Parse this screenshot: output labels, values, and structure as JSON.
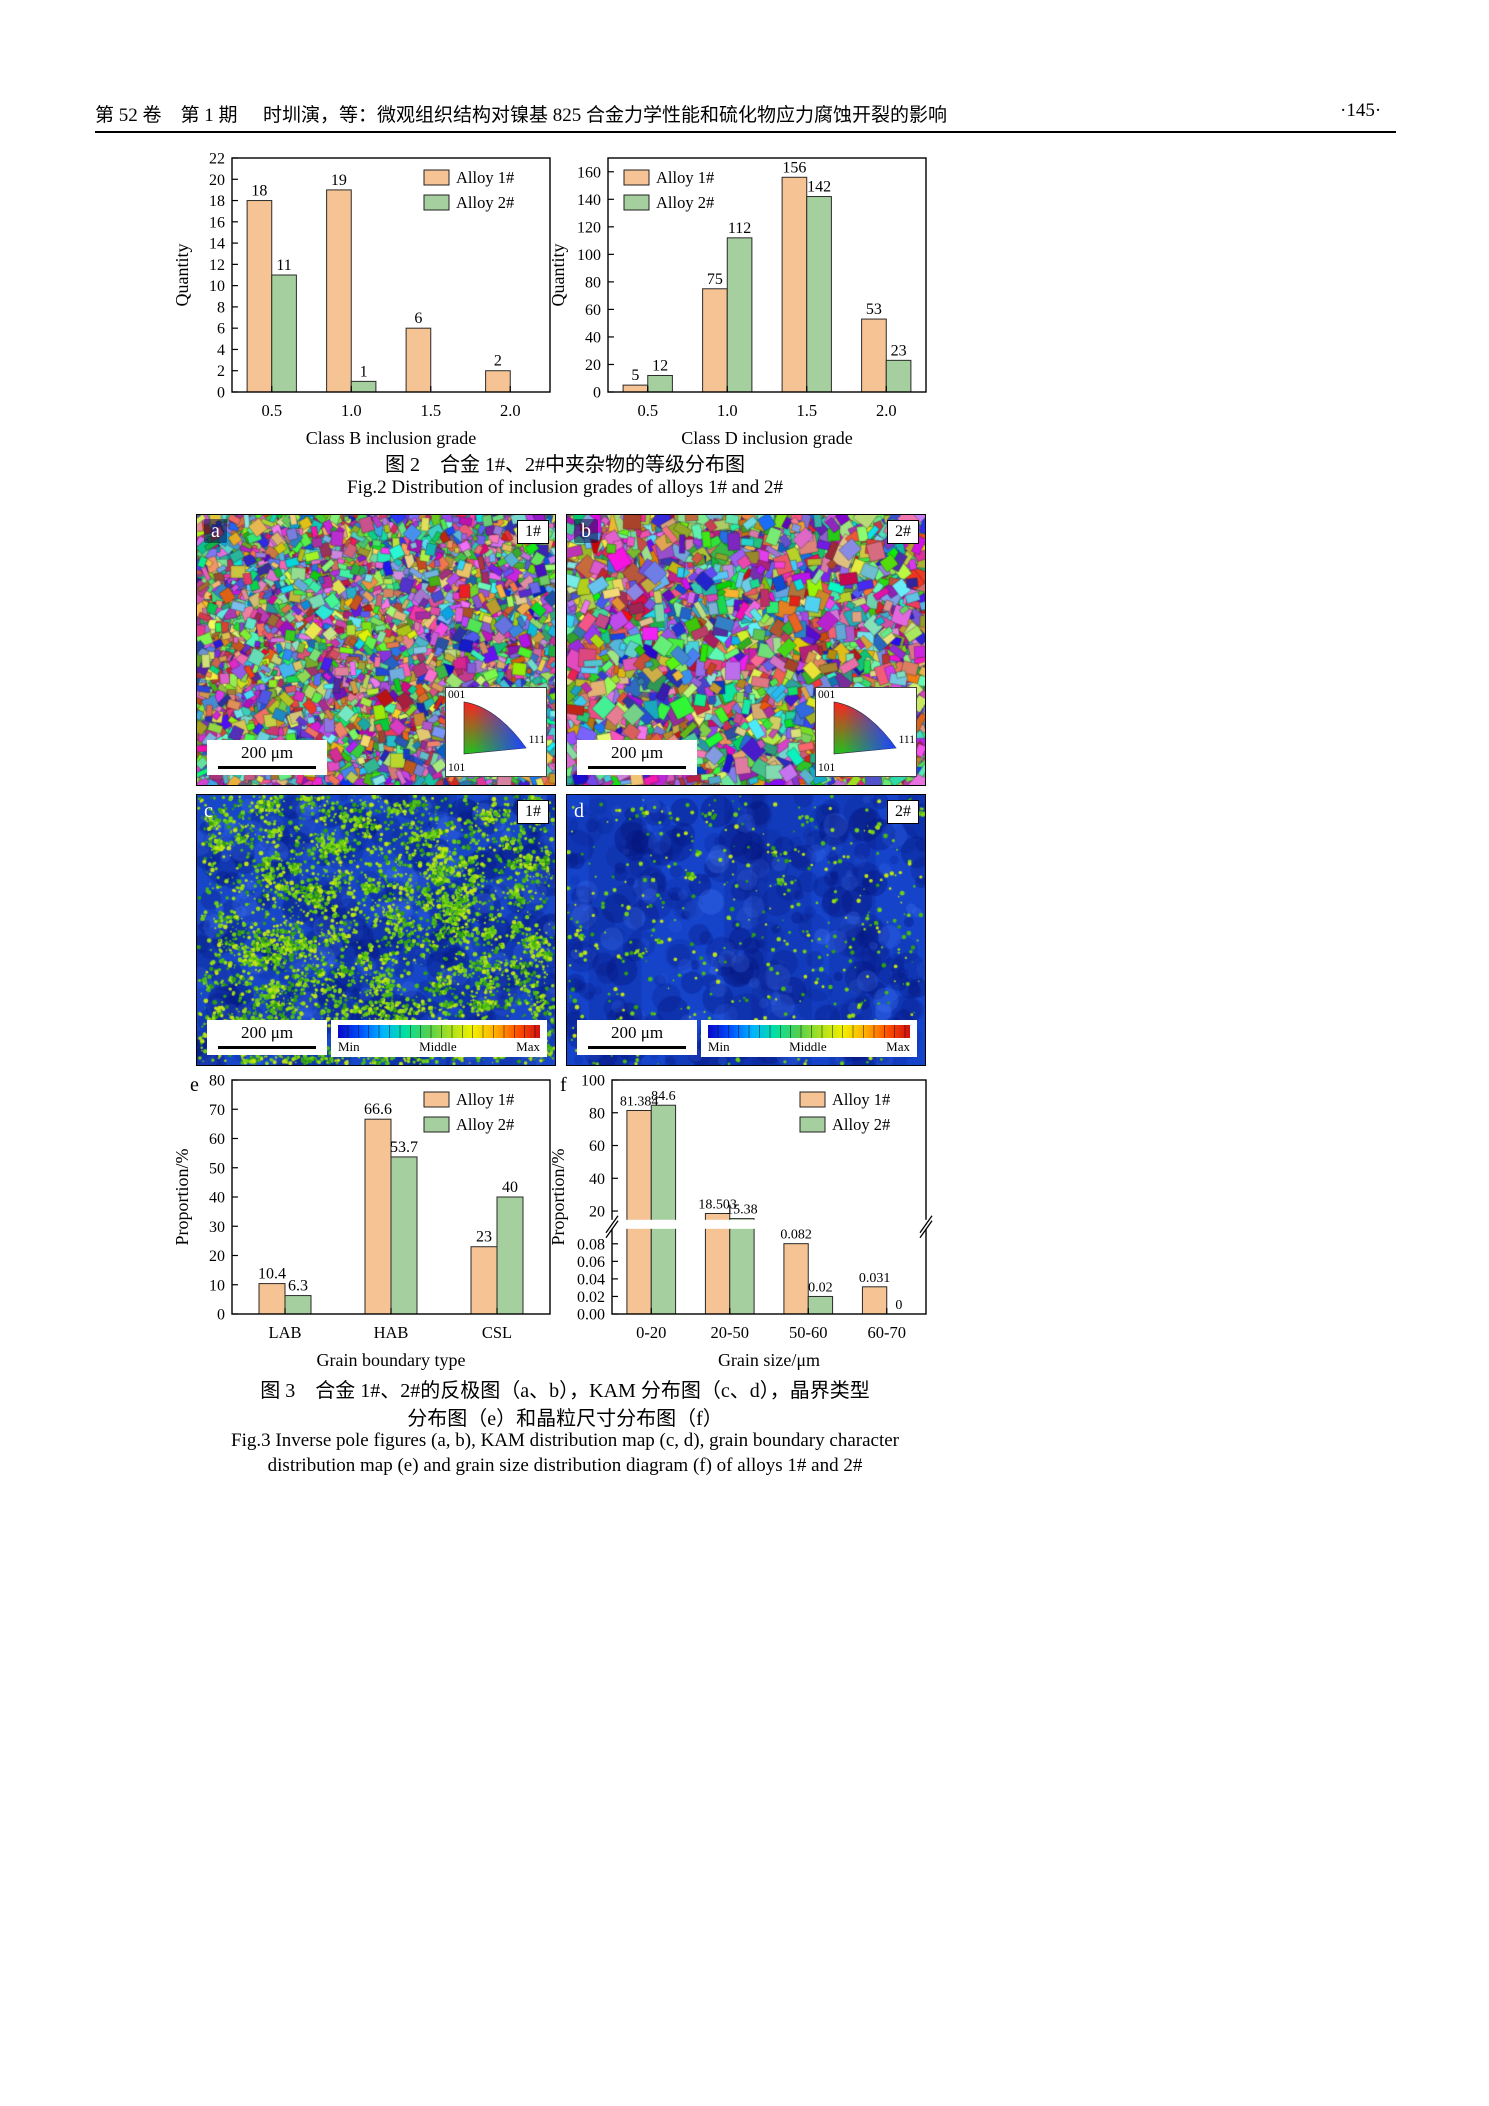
{
  "header": {
    "left": "第 52 卷　第 1 期",
    "center": "时圳演，等：微观组织结构对镍基 825 合金力学性能和硫化物应力腐蚀开裂的影响",
    "right": "·145·"
  },
  "captions": {
    "fig2_zh": "图 2　合金 1#、2#中夹杂物的等级分布图",
    "fig2_en": "Fig.2 Distribution of inclusion grades of alloys 1# and 2#",
    "fig3_zh1": "图 3　合金 1#、2#的反极图（a、b），KAM 分布图（c、d），晶界类型",
    "fig3_zh2": "分布图（e）和晶粒尺寸分布图（f）",
    "fig3_en1": "Fig.3 Inverse pole figures (a, b), KAM distribution map (c, d), grain boundary character",
    "fig3_en2": "distribution map (e) and grain size distribution diagram (f) of alloys 1# and 2#"
  },
  "colors": {
    "alloy1_fill": "#F5C394",
    "alloy2_fill": "#A5CF9F",
    "bar_stroke": "#2a2a2a"
  },
  "panels": {
    "a": {
      "letter": "a",
      "tag": "1#",
      "scale": "200 μm"
    },
    "b": {
      "letter": "b",
      "tag": "2#",
      "scale": "200 μm"
    },
    "c": {
      "letter": "c",
      "tag": "1#",
      "scale": "200 μm"
    },
    "d": {
      "letter": "d",
      "tag": "2#",
      "scale": "200 μm"
    },
    "e": {
      "letter": "e"
    },
    "f": {
      "letter": "f"
    },
    "ipf": {
      "tl": "001",
      "bl": "101",
      "br": "111"
    },
    "colorbar": {
      "min": "Min",
      "mid": "Middle",
      "max": "Max"
    }
  },
  "chart_data": [
    {
      "id": "fig2_classB",
      "type": "bar",
      "categories": [
        "0.5",
        "1.0",
        "1.5",
        "2.0"
      ],
      "series": [
        {
          "name": "Alloy 1#",
          "values": [
            18,
            19,
            6,
            2
          ],
          "labels": [
            "18",
            "19",
            "6",
            "2"
          ]
        },
        {
          "name": "Alloy 2#",
          "values": [
            11,
            1,
            0,
            0
          ],
          "labels": [
            "11",
            "1",
            "",
            ""
          ]
        }
      ],
      "xlabel": "Class B inclusion grade",
      "ylabel": "Quantity",
      "ylim": [
        0,
        22
      ],
      "yticks": [
        0,
        2,
        4,
        6,
        8,
        10,
        12,
        14,
        16,
        18,
        20,
        22
      ],
      "legend_pos": "tr"
    },
    {
      "id": "fig2_classD",
      "type": "bar",
      "categories": [
        "0.5",
        "1.0",
        "1.5",
        "2.0"
      ],
      "series": [
        {
          "name": "Alloy 1#",
          "values": [
            5,
            75,
            156,
            53
          ],
          "labels": [
            "5",
            "75",
            "156",
            "53"
          ]
        },
        {
          "name": "Alloy 2#",
          "values": [
            12,
            112,
            142,
            23
          ],
          "labels": [
            "12",
            "112",
            "142",
            "23"
          ]
        }
      ],
      "xlabel": "Class D inclusion grade",
      "ylabel": "Quantity",
      "ylim": [
        0,
        170
      ],
      "yticks": [
        0,
        20,
        40,
        60,
        80,
        100,
        120,
        140,
        160
      ],
      "legend_pos": "tl"
    },
    {
      "id": "fig3_gbtype",
      "type": "bar",
      "categories": [
        "LAB",
        "HAB",
        "CSL"
      ],
      "series": [
        {
          "name": "Alloy 1#",
          "values": [
            10.4,
            66.6,
            23
          ],
          "labels": [
            "10.4",
            "66.6",
            "23"
          ]
        },
        {
          "name": "Alloy 2#",
          "values": [
            6.3,
            53.7,
            40
          ],
          "labels": [
            "6.3",
            "53.7",
            "40"
          ]
        }
      ],
      "xlabel": "Grain boundary type",
      "ylabel": "Proportion/%",
      "ylim": [
        0,
        80
      ],
      "yticks": [
        0,
        10,
        20,
        30,
        40,
        50,
        60,
        70,
        80
      ],
      "legend_pos": "tr"
    },
    {
      "id": "fig3_grainsize",
      "type": "bar-broken",
      "categories": [
        "0-20",
        "20-50",
        "50-60",
        "60-70"
      ],
      "series": [
        {
          "name": "Alloy 1#",
          "values": [
            81.384,
            18.503,
            0.082,
            0.031
          ],
          "labels": [
            "81.384",
            "18.503",
            "0.082",
            "0.031"
          ]
        },
        {
          "name": "Alloy 2#",
          "values": [
            84.6,
            15.38,
            0.02,
            0
          ],
          "labels": [
            "84.6",
            "15.38",
            "0.02",
            "0"
          ]
        }
      ],
      "xlabel": "Grain size/μm",
      "ylabel": "Proportion/%",
      "broken": {
        "low_max": 0.08,
        "low_frac": 0.3,
        "low_ticks": [
          "0.00",
          "0.02",
          "0.04",
          "0.06",
          "0.08"
        ],
        "high_max": 100,
        "high_ticks": [
          20,
          40,
          60,
          80,
          100
        ]
      },
      "legend_pos": "tr"
    }
  ]
}
